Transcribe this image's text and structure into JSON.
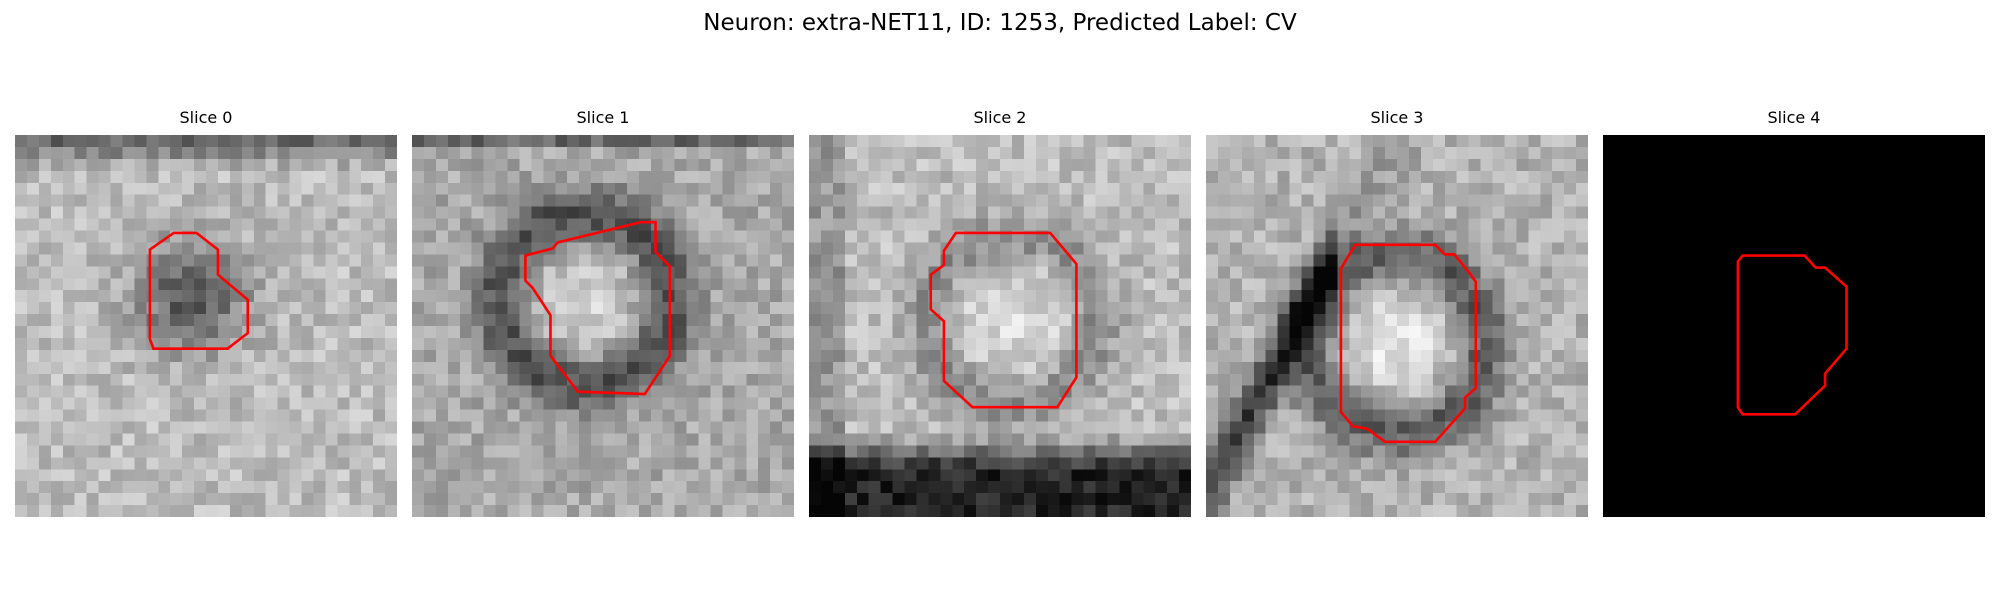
{
  "figure": {
    "suptitle": "Neuron: extra-NET11, ID: 1253, Predicted Label: CV",
    "contour_color": "#ff0000"
  },
  "panels": [
    {
      "title": "Slice 0"
    },
    {
      "title": "Slice 1"
    },
    {
      "title": "Slice 2"
    },
    {
      "title": "Slice 3"
    },
    {
      "title": "Slice 4"
    }
  ]
}
